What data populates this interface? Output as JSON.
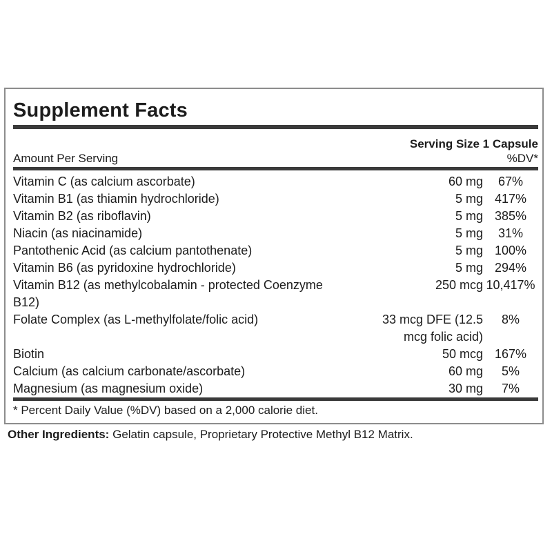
{
  "panel": {
    "title": "Supplement Facts",
    "serving_size": "Serving Size 1 Capsule",
    "header": {
      "amount": "Amount Per Serving",
      "dv": "%DV*"
    },
    "rows": [
      {
        "name": "Vitamin C (as calcium ascorbate)",
        "amount": "60 mg",
        "dv": "67%"
      },
      {
        "name": "Vitamin B1 (as thiamin hydrochloride)",
        "amount": "5 mg",
        "dv": "417%"
      },
      {
        "name": "Vitamin B2 (as riboflavin)",
        "amount": "5 mg",
        "dv": "385%"
      },
      {
        "name": "Niacin (as niacinamide)",
        "amount": "5 mg",
        "dv": "31%"
      },
      {
        "name": "Pantothenic Acid (as calcium pantothenate)",
        "amount": "5 mg",
        "dv": "100%"
      },
      {
        "name": "Vitamin B6 (as pyridoxine hydrochloride)",
        "amount": "5 mg",
        "dv": "294%"
      },
      {
        "name": "Vitamin B12 (as methylcobalamin - protected Coenzyme B12)",
        "amount": "250 mcg",
        "dv": "10,417%"
      },
      {
        "name": "Folate Complex (as L-methylfolate/folic acid)",
        "amount": "33 mcg DFE (12.5 mcg folic acid)",
        "dv": "8%"
      },
      {
        "name": "Biotin",
        "amount": "50 mcg",
        "dv": "167%"
      },
      {
        "name": "Calcium (as calcium carbonate/ascorbate)",
        "amount": "60 mg",
        "dv": "5%"
      },
      {
        "name": "Magnesium (as magnesium oxide)",
        "amount": "30 mg",
        "dv": "7%"
      }
    ],
    "footnote": "* Percent Daily Value (%DV) based on a 2,000 calorie diet."
  },
  "other_ingredients": {
    "label": "Other Ingredients:",
    "text": "Gelatin capsule, Proprietary Protective Methyl B12 Matrix."
  },
  "colors": {
    "rule": "#3a3a3a",
    "panel_border": "#8c8c8c",
    "text": "#1c1c1c"
  }
}
